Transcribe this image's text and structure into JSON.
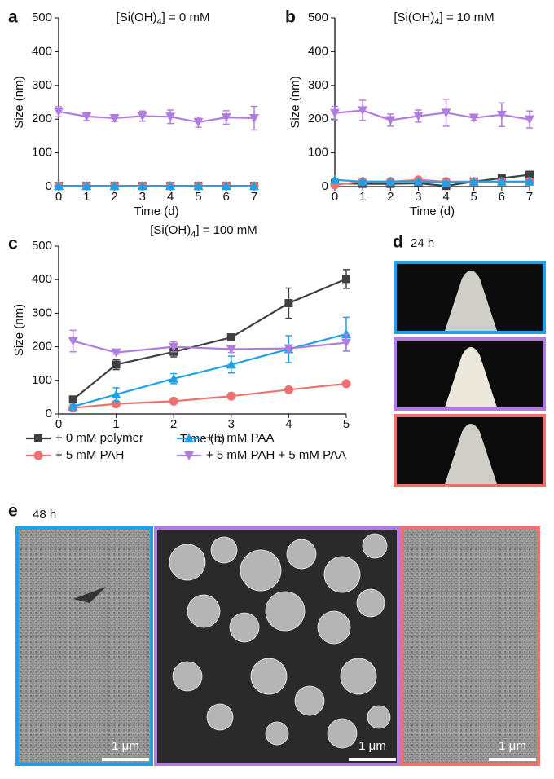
{
  "chart_data": [
    {
      "type": "line",
      "panel": "a",
      "title": [
        "[Si(OH)",
        "4",
        "] = 0 mM"
      ],
      "x_label": "Time (d)",
      "y_label": "Size (nm)",
      "x": [
        0,
        1,
        2,
        3,
        4,
        5,
        6,
        7
      ],
      "xlim": [
        0,
        7
      ],
      "xticks": [
        0,
        1,
        2,
        3,
        4,
        5,
        6,
        7
      ],
      "ylim": [
        0,
        500
      ],
      "yticks": [
        0,
        100,
        200,
        300,
        400,
        500
      ],
      "series": [
        {
          "color": "#404040",
          "marker": "square",
          "values": [
            2,
            2,
            2,
            2,
            2,
            2,
            2,
            2
          ],
          "errors": [
            1,
            1,
            1,
            1,
            1,
            1,
            1,
            1
          ]
        },
        {
          "color": "#f07070",
          "marker": "circle",
          "values": [
            2,
            2,
            2,
            2,
            2,
            2,
            2,
            2
          ],
          "errors": [
            1,
            1,
            1,
            1,
            1,
            1,
            1,
            1
          ]
        },
        {
          "color": "#1fa0e8",
          "marker": "triangle-up",
          "values": [
            2,
            2,
            2,
            2,
            2,
            2,
            2,
            2
          ],
          "errors": [
            1,
            1,
            1,
            1,
            1,
            1,
            1,
            1
          ]
        },
        {
          "color": "#b07ce0",
          "marker": "triangle-down",
          "values": [
            222,
            208,
            203,
            209,
            207,
            191,
            205,
            203
          ],
          "errors": [
            15,
            12,
            10,
            15,
            20,
            15,
            20,
            35
          ]
        }
      ]
    },
    {
      "type": "line",
      "panel": "b",
      "title": [
        "[Si(OH)",
        "4",
        "] = 10 mM"
      ],
      "x_label": "Time (d)",
      "y_label": "Size (nm)",
      "x": [
        0,
        1,
        2,
        3,
        4,
        5,
        6,
        7
      ],
      "xlim": [
        0,
        7
      ],
      "xticks": [
        0,
        1,
        2,
        3,
        4,
        5,
        6,
        7
      ],
      "ylim": [
        0,
        500
      ],
      "yticks": [
        0,
        100,
        200,
        300,
        400,
        500
      ],
      "series": [
        {
          "color": "#404040",
          "marker": "square",
          "values": [
            10,
            8,
            8,
            10,
            2,
            15,
            25,
            35
          ],
          "errors": [
            3,
            3,
            3,
            3,
            3,
            4,
            5,
            5
          ]
        },
        {
          "color": "#f07070",
          "marker": "circle",
          "values": [
            5,
            15,
            15,
            20,
            15,
            15,
            15,
            15
          ],
          "errors": [
            3,
            3,
            3,
            4,
            3,
            3,
            3,
            3
          ]
        },
        {
          "color": "#1fa0e8",
          "marker": "triangle-up",
          "values": [
            20,
            15,
            15,
            15,
            12,
            15,
            15,
            15
          ],
          "errors": [
            4,
            3,
            3,
            3,
            3,
            3,
            3,
            3
          ]
        },
        {
          "color": "#b07ce0",
          "marker": "triangle-down",
          "values": [
            218,
            226,
            197,
            209,
            219,
            204,
            213,
            199
          ],
          "errors": [
            20,
            30,
            18,
            18,
            40,
            8,
            35,
            25
          ]
        }
      ]
    },
    {
      "type": "line",
      "panel": "c",
      "title": [
        "[Si(OH)",
        "4",
        "] = 100 mM"
      ],
      "x_label": "Time (h)",
      "y_label": "Size (nm)",
      "x": [
        0.25,
        1,
        2,
        3,
        4,
        5
      ],
      "xlim": [
        0,
        5
      ],
      "xticks": [
        0,
        1,
        2,
        3,
        4,
        5
      ],
      "ylim": [
        0,
        500
      ],
      "yticks": [
        0,
        100,
        200,
        300,
        400,
        500
      ],
      "series": [
        {
          "name": "+ 0 mM polymer",
          "color": "#404040",
          "marker": "square",
          "values": [
            43,
            147,
            185,
            228,
            330,
            402
          ],
          "errors": [
            5,
            15,
            15,
            8,
            45,
            28
          ]
        },
        {
          "name": "+ 5 mM PAH",
          "color": "#f07070",
          "marker": "circle",
          "values": [
            18,
            30,
            38,
            53,
            72,
            90
          ],
          "errors": [
            3,
            3,
            3,
            3,
            3,
            3
          ]
        },
        {
          "name": "+ 5 mM PAA",
          "color": "#1fa0e8",
          "marker": "triangle-up",
          "values": [
            22,
            58,
            105,
            147,
            193,
            238
          ],
          "errors": [
            5,
            20,
            15,
            25,
            40,
            50
          ]
        },
        {
          "name": "+ 5 mM PAH + 5 mM PAA",
          "color": "#b07ce0",
          "marker": "triangle-down",
          "values": [
            217,
            183,
            200,
            193,
            195,
            212
          ],
          "errors": [
            32,
            5,
            15,
            10,
            10,
            25
          ]
        }
      ]
    }
  ],
  "panels": {
    "d": {
      "label": "d",
      "caption": "24 h"
    },
    "e": {
      "label": "e",
      "caption": "48 h",
      "scale_bars": [
        "1 μm",
        "1 μm",
        "1 μm"
      ]
    }
  }
}
